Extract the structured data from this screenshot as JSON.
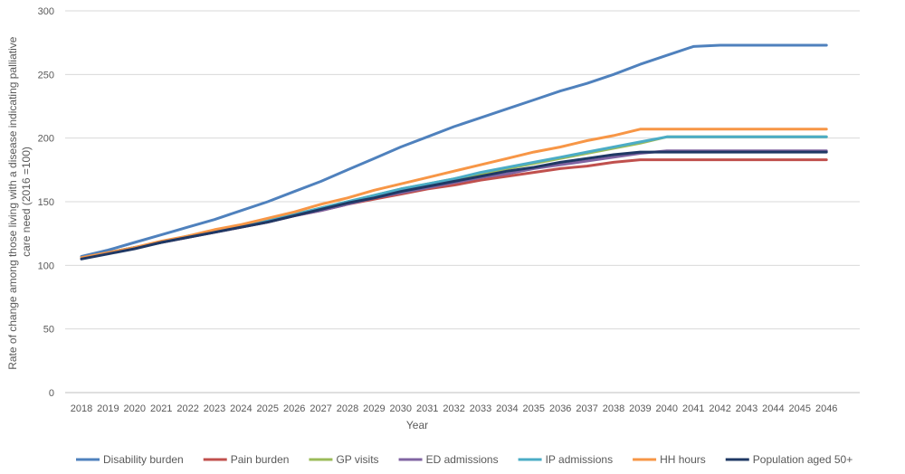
{
  "chart_data": {
    "type": "line",
    "xlabel": "Year",
    "ylabel": "Rate of change among those living with a disease indicating palliative care need (2016 =100)",
    "ylim": [
      0,
      300
    ],
    "yticks": [
      0,
      50,
      100,
      150,
      200,
      250,
      300
    ],
    "grid": true,
    "legend_position": "bottom",
    "categories": [
      "2018",
      "2019",
      "2020",
      "2021",
      "2022",
      "2023",
      "2024",
      "2025",
      "2026",
      "2027",
      "2028",
      "2029",
      "2030",
      "2031",
      "2032",
      "2033",
      "2034",
      "2035",
      "2036",
      "2037",
      "2038",
      "2039",
      "2040",
      "2041",
      "2042",
      "2043",
      "2044",
      "2045",
      "2046"
    ],
    "series": [
      {
        "name": "Disability burden",
        "color": "#4f81bd",
        "values": [
          107,
          112,
          118,
          124,
          130,
          136,
          143,
          150,
          158,
          166,
          175,
          184,
          193,
          201,
          209,
          216,
          223,
          230,
          237,
          243,
          250,
          258,
          265,
          272,
          273,
          273,
          273,
          273,
          273
        ]
      },
      {
        "name": "Pain burden",
        "color": "#c0504d",
        "values": [
          106,
          110,
          114,
          118,
          122,
          126,
          130,
          134,
          139,
          143,
          148,
          152,
          156,
          160,
          163,
          167,
          170,
          173,
          176,
          178,
          181,
          183,
          183,
          183,
          183,
          183,
          183,
          183,
          183
        ]
      },
      {
        "name": "GP visits",
        "color": "#9bbb59",
        "values": [
          106,
          110,
          114,
          118,
          123,
          127,
          131,
          136,
          140,
          145,
          150,
          155,
          160,
          164,
          168,
          172,
          176,
          180,
          184,
          188,
          192,
          196,
          201,
          201,
          201,
          201,
          201,
          201,
          201
        ]
      },
      {
        "name": "ED admissions",
        "color": "#8064a2",
        "values": [
          106,
          110,
          114,
          118,
          122,
          126,
          130,
          134,
          139,
          143,
          148,
          153,
          157,
          161,
          165,
          169,
          172,
          176,
          179,
          182,
          185,
          188,
          190,
          190,
          190,
          190,
          190,
          190,
          190
        ]
      },
      {
        "name": "IP admissions",
        "color": "#4bacc6",
        "values": [
          106,
          110,
          114,
          118,
          123,
          127,
          131,
          136,
          140,
          145,
          150,
          155,
          160,
          164,
          168,
          173,
          177,
          181,
          185,
          189,
          193,
          197,
          201,
          201,
          201,
          201,
          201,
          201,
          201
        ]
      },
      {
        "name": "HH hours",
        "color": "#f79646",
        "values": [
          106,
          110,
          114,
          119,
          123,
          128,
          132,
          137,
          142,
          148,
          153,
          159,
          164,
          169,
          174,
          179,
          184,
          189,
          193,
          198,
          202,
          207,
          207,
          207,
          207,
          207,
          207,
          207,
          207
        ]
      },
      {
        "name": "Population aged 50+",
        "color": "#1f3864",
        "values": [
          105,
          109,
          113,
          118,
          122,
          126,
          130,
          134,
          139,
          144,
          149,
          153,
          158,
          162,
          166,
          170,
          174,
          177,
          181,
          184,
          187,
          189,
          189,
          189,
          189,
          189,
          189,
          189,
          189
        ]
      }
    ]
  }
}
